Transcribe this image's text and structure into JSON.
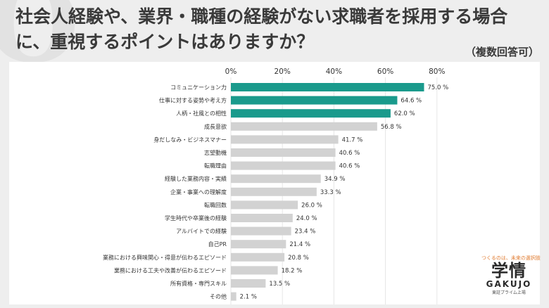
{
  "title": "社会人経験や、業界・職種の経験がない求職者を採用する場合に、重視するポイントはありますか？",
  "note": "（複数回答可）",
  "brand": {
    "tagline": "つくるのは、未来の選択肢",
    "mark": "学情",
    "name": "GAKUJO",
    "sub": "東証プライム上場"
  },
  "colors": {
    "highlight": "#1a9a8c",
    "bar": "#d2d2d2",
    "background": "#eeeeee"
  },
  "chart_data": {
    "type": "bar",
    "orientation": "horizontal",
    "title": "",
    "xlabel": "",
    "ylabel": "",
    "xlim": [
      0,
      80
    ],
    "ticks": [
      "0%",
      "20%",
      "40%",
      "60%",
      "80%"
    ],
    "tick_values": [
      0,
      20,
      40,
      60,
      80
    ],
    "value_suffix": " %",
    "categories": [
      "コミュニケーション力",
      "仕事に対する姿勢や考え方",
      "人柄・社風との相性",
      "成長意欲",
      "身だしなみ・ビジネスマナー",
      "志望動機",
      "転職理由",
      "経験した業務内容・実績",
      "企業・事業への理解度",
      "転職回数",
      "学生時代や卒業後の経験",
      "アルバイトでの経験",
      "自己PR",
      "業務における興味関心・得意が伝わるエピソード",
      "業務における工夫や改善が伝わるエピソード",
      "所有資格・専門スキル",
      "その他"
    ],
    "values": [
      75.0,
      64.6,
      62.0,
      56.8,
      41.7,
      40.6,
      40.6,
      34.9,
      33.3,
      26.0,
      24.0,
      23.4,
      21.4,
      20.8,
      18.2,
      13.5,
      2.1
    ],
    "highlighted": [
      0,
      1,
      2
    ]
  }
}
